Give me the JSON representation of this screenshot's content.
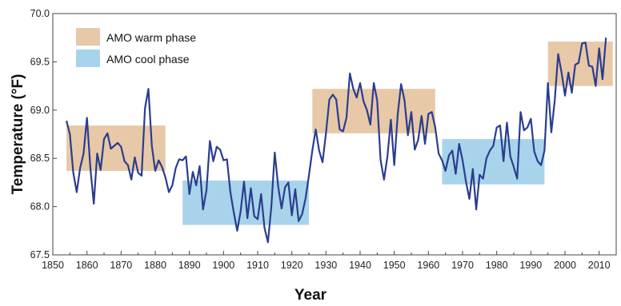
{
  "chart_data": {
    "type": "line",
    "title": "",
    "xlabel": "Year",
    "ylabel": "Temperature (°F)",
    "xlim": [
      1850,
      2015
    ],
    "ylim": [
      67.5,
      70.0
    ],
    "x_ticks": [
      1850,
      1860,
      1870,
      1880,
      1890,
      1900,
      1910,
      1920,
      1930,
      1940,
      1950,
      1960,
      1970,
      1980,
      1990,
      2000,
      2010
    ],
    "y_ticks": [
      "67.5",
      "68.0",
      "68.5",
      "69.0",
      "69.5",
      "70.0"
    ],
    "grid": false,
    "legend_position": "top-left",
    "line_color": "#2b3d8f",
    "phases": [
      {
        "name": "AMO warm phase",
        "color": "#e7c9a8"
      },
      {
        "name": "AMO cool phase",
        "color": "#a8d4eb"
      }
    ],
    "phase_periods": [
      {
        "phase": "warm",
        "x_start": 1854,
        "x_end": 1883,
        "y_low": 68.37,
        "y_high": 68.84
      },
      {
        "phase": "cool",
        "x_start": 1888,
        "x_end": 1925,
        "y_low": 67.81,
        "y_high": 68.27
      },
      {
        "phase": "warm",
        "x_start": 1926,
        "x_end": 1962,
        "y_low": 68.76,
        "y_high": 69.22
      },
      {
        "phase": "cool",
        "x_start": 1964,
        "x_end": 1994,
        "y_low": 68.23,
        "y_high": 68.7
      },
      {
        "phase": "warm",
        "x_start": 1995,
        "x_end": 2014,
        "y_low": 69.25,
        "y_high": 69.71
      }
    ],
    "series": [
      {
        "x": [
          1854,
          1855,
          1856,
          1857,
          1858,
          1859,
          1860,
          1861,
          1862,
          1863,
          1864,
          1865,
          1866,
          1867,
          1868,
          1869,
          1870,
          1871,
          1872,
          1873,
          1874,
          1875,
          1876,
          1877,
          1878,
          1879,
          1880,
          1881,
          1882,
          1883,
          1884,
          1885,
          1886,
          1887,
          1888,
          1889,
          1890,
          1891,
          1892,
          1893,
          1894,
          1895,
          1896,
          1897,
          1898,
          1899,
          1900,
          1901,
          1902,
          1903,
          1904,
          1905,
          1906,
          1907,
          1908,
          1909,
          1910,
          1911,
          1912,
          1913,
          1914,
          1915,
          1916,
          1917,
          1918,
          1919,
          1920,
          1921,
          1922,
          1923,
          1924,
          1925,
          1926,
          1927,
          1928,
          1929,
          1930,
          1931,
          1932,
          1933,
          1934,
          1935,
          1936,
          1937,
          1938,
          1939,
          1940,
          1941,
          1942,
          1943,
          1944,
          1945,
          1946,
          1947,
          1948,
          1949,
          1950,
          1951,
          1952,
          1953,
          1954,
          1955,
          1956,
          1957,
          1958,
          1959,
          1960,
          1961,
          1962,
          1963,
          1964,
          1965,
          1966,
          1967,
          1968,
          1969,
          1970,
          1971,
          1972,
          1973,
          1974,
          1975,
          1976,
          1977,
          1978,
          1979,
          1980,
          1981,
          1982,
          1983,
          1984,
          1985,
          1986,
          1987,
          1988,
          1989,
          1990,
          1991,
          1992,
          1993,
          1994,
          1995,
          1996,
          1997,
          1998,
          1999,
          2000,
          2001,
          2002,
          2003,
          2004,
          2005,
          2006,
          2007,
          2008,
          2009,
          2010,
          2011,
          2012
        ],
        "values": [
          68.89,
          68.75,
          68.35,
          68.15,
          68.4,
          68.55,
          68.92,
          68.4,
          68.03,
          68.55,
          68.38,
          68.7,
          68.76,
          68.6,
          68.63,
          68.66,
          68.62,
          68.47,
          68.43,
          68.28,
          68.51,
          68.35,
          68.32,
          69.02,
          69.22,
          68.63,
          68.37,
          68.48,
          68.41,
          68.3,
          68.15,
          68.22,
          68.4,
          68.49,
          68.48,
          68.52,
          68.13,
          68.36,
          68.22,
          68.42,
          67.97,
          68.17,
          68.68,
          68.47,
          68.62,
          68.59,
          68.48,
          68.49,
          68.15,
          67.94,
          67.75,
          67.95,
          68.26,
          67.88,
          68.19,
          67.9,
          67.87,
          68.13,
          67.78,
          67.63,
          68.0,
          68.56,
          68.21,
          67.98,
          68.2,
          68.25,
          67.91,
          68.18,
          67.85,
          67.92,
          68.08,
          68.32,
          68.58,
          68.8,
          68.58,
          68.46,
          68.76,
          69.11,
          69.16,
          69.11,
          68.8,
          68.78,
          68.92,
          69.38,
          69.22,
          69.13,
          69.28,
          69.09,
          69.0,
          68.85,
          69.28,
          69.1,
          68.48,
          68.28,
          68.52,
          68.9,
          68.43,
          68.95,
          69.27,
          69.1,
          68.74,
          68.98,
          68.59,
          68.69,
          68.94,
          68.65,
          68.96,
          68.98,
          68.82,
          68.55,
          68.48,
          68.37,
          68.53,
          68.58,
          68.34,
          68.65,
          68.48,
          68.26,
          68.08,
          68.39,
          67.97,
          68.33,
          68.29,
          68.5,
          68.58,
          68.63,
          68.82,
          68.84,
          68.47,
          68.87,
          68.52,
          68.41,
          68.29,
          68.98,
          68.79,
          68.82,
          68.91,
          68.57,
          68.47,
          68.43,
          68.58,
          69.28,
          68.77,
          69.1,
          69.58,
          69.39,
          69.15,
          69.39,
          69.18,
          69.47,
          69.49,
          69.69,
          69.7,
          69.46,
          69.45,
          69.25,
          69.64,
          69.32,
          69.75
        ]
      }
    ]
  }
}
